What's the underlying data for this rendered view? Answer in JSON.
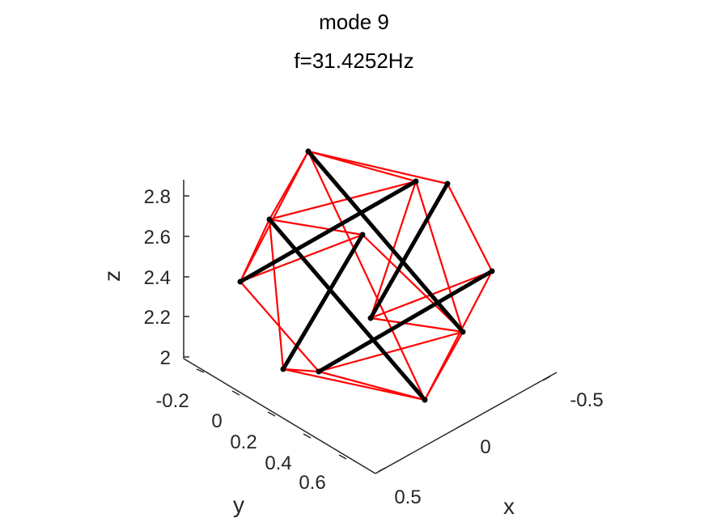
{
  "title": "mode 9",
  "subtitle": "f=31.4252Hz",
  "axes": {
    "z": {
      "label": "z",
      "ticks": [
        "2",
        "2.2",
        "2.4",
        "2.6",
        "2.8"
      ]
    },
    "y": {
      "label": "y",
      "ticks": [
        "-0.2",
        "0",
        "0.2",
        "0.4",
        "0.6"
      ]
    },
    "x": {
      "label": "x",
      "ticks": [
        "-0.5",
        "0",
        "0.5"
      ]
    }
  },
  "colors": {
    "bar": "#000000",
    "string": "#ff0000",
    "axis": "#262626"
  },
  "diagram": {
    "nodes": 12,
    "bars": 6,
    "strings": 24
  }
}
